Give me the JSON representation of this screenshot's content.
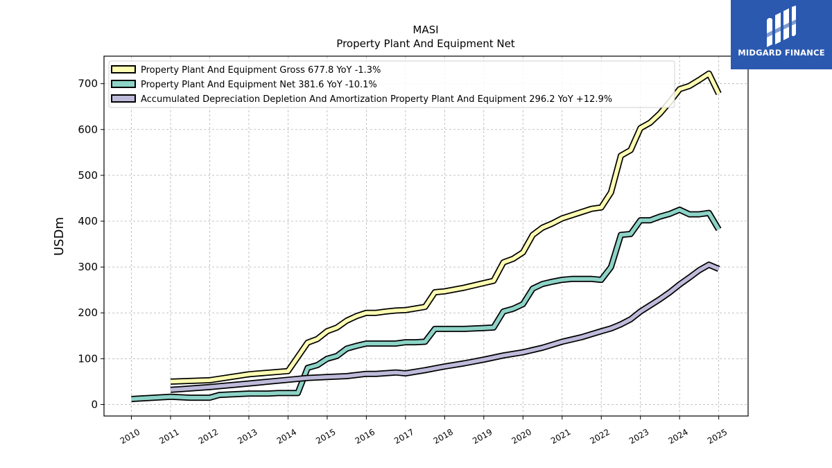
{
  "brand": {
    "name": "MIDGARD FINANCE",
    "bg_color": "#2b59b0"
  },
  "chart_data": {
    "type": "line",
    "title": "MASI",
    "subtitle": "Property Plant And Equipment Net",
    "ylabel": "USDm",
    "xlabel": "",
    "ylim": [
      -25,
      760
    ],
    "xlim": [
      2009.3,
      2025.75
    ],
    "yticks": [
      0,
      100,
      200,
      300,
      400,
      500,
      600,
      700
    ],
    "xticks": [
      2010,
      2011,
      2012,
      2013,
      2014,
      2015,
      2016,
      2017,
      2018,
      2019,
      2020,
      2021,
      2022,
      2023,
      2024,
      2025
    ],
    "grid": true,
    "legend_position": "top-left",
    "series": [
      {
        "name": "Property Plant And Equipment Gross",
        "legend_label": "Property Plant And Equipment Gross  677.8 YoY -1.3%",
        "color": "#ffffb3",
        "points": [
          [
            2011.0,
            50
          ],
          [
            2012.0,
            53
          ],
          [
            2013.0,
            66
          ],
          [
            2014.0,
            73
          ],
          [
            2014.5,
            135
          ],
          [
            2014.75,
            143
          ],
          [
            2015.0,
            160
          ],
          [
            2015.25,
            168
          ],
          [
            2015.5,
            183
          ],
          [
            2015.75,
            193
          ],
          [
            2016.0,
            200
          ],
          [
            2016.25,
            200
          ],
          [
            2016.5,
            203
          ],
          [
            2016.75,
            205
          ],
          [
            2017.0,
            206
          ],
          [
            2017.5,
            213
          ],
          [
            2017.75,
            245
          ],
          [
            2018.0,
            247
          ],
          [
            2018.5,
            255
          ],
          [
            2019.0,
            265
          ],
          [
            2019.25,
            270
          ],
          [
            2019.5,
            310
          ],
          [
            2019.75,
            318
          ],
          [
            2020.0,
            332
          ],
          [
            2020.25,
            370
          ],
          [
            2020.5,
            386
          ],
          [
            2020.75,
            395
          ],
          [
            2021.0,
            406
          ],
          [
            2021.5,
            420
          ],
          [
            2021.75,
            427
          ],
          [
            2022.0,
            430
          ],
          [
            2022.25,
            463
          ],
          [
            2022.5,
            543
          ],
          [
            2022.75,
            555
          ],
          [
            2023.0,
            603
          ],
          [
            2023.25,
            615
          ],
          [
            2023.5,
            635
          ],
          [
            2023.75,
            660
          ],
          [
            2024.0,
            688
          ],
          [
            2024.25,
            695
          ],
          [
            2024.5,
            708
          ],
          [
            2024.75,
            722
          ],
          [
            2025.0,
            678
          ]
        ]
      },
      {
        "name": "Property Plant And Equipment Net",
        "legend_label": "Property Plant And Equipment Net  381.6 YoY -10.1%",
        "color": "#8dd3c7",
        "points": [
          [
            2010.0,
            12
          ],
          [
            2011.0,
            17
          ],
          [
            2011.5,
            15
          ],
          [
            2012.0,
            15
          ],
          [
            2012.25,
            21
          ],
          [
            2013.0,
            24
          ],
          [
            2013.5,
            24
          ],
          [
            2013.75,
            25
          ],
          [
            2014.25,
            25
          ],
          [
            2014.5,
            80
          ],
          [
            2014.75,
            86
          ],
          [
            2015.0,
            100
          ],
          [
            2015.25,
            106
          ],
          [
            2015.5,
            122
          ],
          [
            2015.75,
            128
          ],
          [
            2016.0,
            133
          ],
          [
            2016.5,
            133
          ],
          [
            2016.75,
            133
          ],
          [
            2017.0,
            136
          ],
          [
            2017.25,
            136
          ],
          [
            2017.5,
            137
          ],
          [
            2017.75,
            165
          ],
          [
            2018.0,
            165
          ],
          [
            2018.5,
            165
          ],
          [
            2019.0,
            167
          ],
          [
            2019.25,
            168
          ],
          [
            2019.5,
            203
          ],
          [
            2019.75,
            209
          ],
          [
            2020.0,
            219
          ],
          [
            2020.25,
            253
          ],
          [
            2020.5,
            263
          ],
          [
            2020.75,
            268
          ],
          [
            2021.0,
            272
          ],
          [
            2021.25,
            274
          ],
          [
            2021.5,
            274
          ],
          [
            2021.75,
            274
          ],
          [
            2022.0,
            272
          ],
          [
            2022.25,
            300
          ],
          [
            2022.5,
            370
          ],
          [
            2022.75,
            372
          ],
          [
            2023.0,
            402
          ],
          [
            2023.25,
            402
          ],
          [
            2023.5,
            410
          ],
          [
            2023.75,
            416
          ],
          [
            2024.0,
            425
          ],
          [
            2024.25,
            415
          ],
          [
            2024.5,
            415
          ],
          [
            2024.75,
            418
          ],
          [
            2025.0,
            382
          ]
        ]
      },
      {
        "name": "Accumulated Depreciation Depletion And Amortization Property Plant And Equipment",
        "legend_label": "Accumulated Depreciation Depletion And Amortization Property Plant And Equipment  296.2 YoY +12.9%",
        "color": "#bebada",
        "points": [
          [
            2011.0,
            32
          ],
          [
            2012.0,
            38
          ],
          [
            2013.0,
            46
          ],
          [
            2014.0,
            54
          ],
          [
            2014.5,
            58
          ],
          [
            2015.0,
            60
          ],
          [
            2015.5,
            62
          ],
          [
            2016.0,
            67
          ],
          [
            2016.25,
            67
          ],
          [
            2016.75,
            70
          ],
          [
            2017.0,
            68
          ],
          [
            2017.5,
            75
          ],
          [
            2018.0,
            83
          ],
          [
            2018.5,
            90
          ],
          [
            2019.0,
            98
          ],
          [
            2019.5,
            107
          ],
          [
            2020.0,
            114
          ],
          [
            2020.5,
            124
          ],
          [
            2021.0,
            137
          ],
          [
            2021.5,
            147
          ],
          [
            2022.0,
            160
          ],
          [
            2022.25,
            166
          ],
          [
            2022.5,
            175
          ],
          [
            2022.75,
            186
          ],
          [
            2023.0,
            203
          ],
          [
            2023.5,
            230
          ],
          [
            2023.75,
            245
          ],
          [
            2024.0,
            262
          ],
          [
            2024.25,
            277
          ],
          [
            2024.5,
            293
          ],
          [
            2024.75,
            305
          ],
          [
            2025.0,
            296
          ]
        ]
      }
    ]
  }
}
